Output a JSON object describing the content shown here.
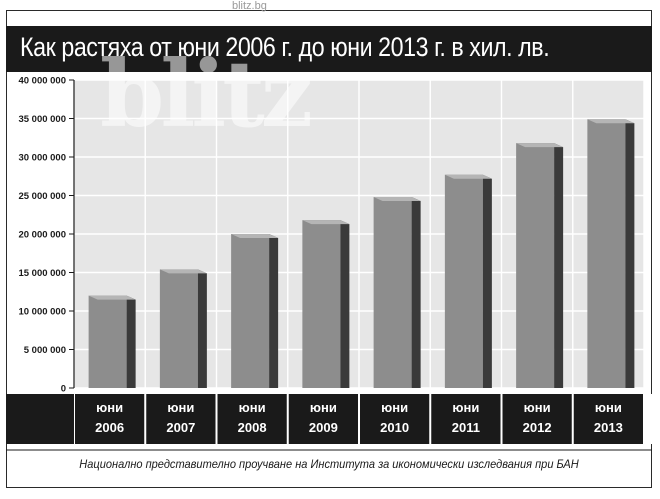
{
  "watermark": {
    "site": "blitz.bg",
    "logo": "blitz"
  },
  "chart_data": {
    "type": "bar",
    "title": "Как растяха от юни 2006 г. до юни 2013 г. в хил. лв.",
    "categories": [
      "юни\n2006",
      "юни\n2007",
      "юни\n2008",
      "юни\n2009",
      "юни\n2010",
      "юни\n2011",
      "юни\n2012",
      "юни\n2013"
    ],
    "values": [
      12000000,
      15400000,
      20000000,
      21800000,
      24800000,
      27700000,
      31800000,
      34900000
    ],
    "ylim": [
      0,
      40000000
    ],
    "yticks": [
      0,
      5000000,
      10000000,
      15000000,
      20000000,
      25000000,
      30000000,
      35000000,
      40000000
    ],
    "ytick_labels": [
      "0",
      "5 000 000",
      "10 000 000",
      "15 000 000",
      "20 000 000",
      "25 000 000",
      "30 000 000",
      "35 000 000",
      "40 000 000"
    ],
    "grid": true,
    "source": "Национално представително проучване на Института за икономически изследвания при БАН"
  }
}
